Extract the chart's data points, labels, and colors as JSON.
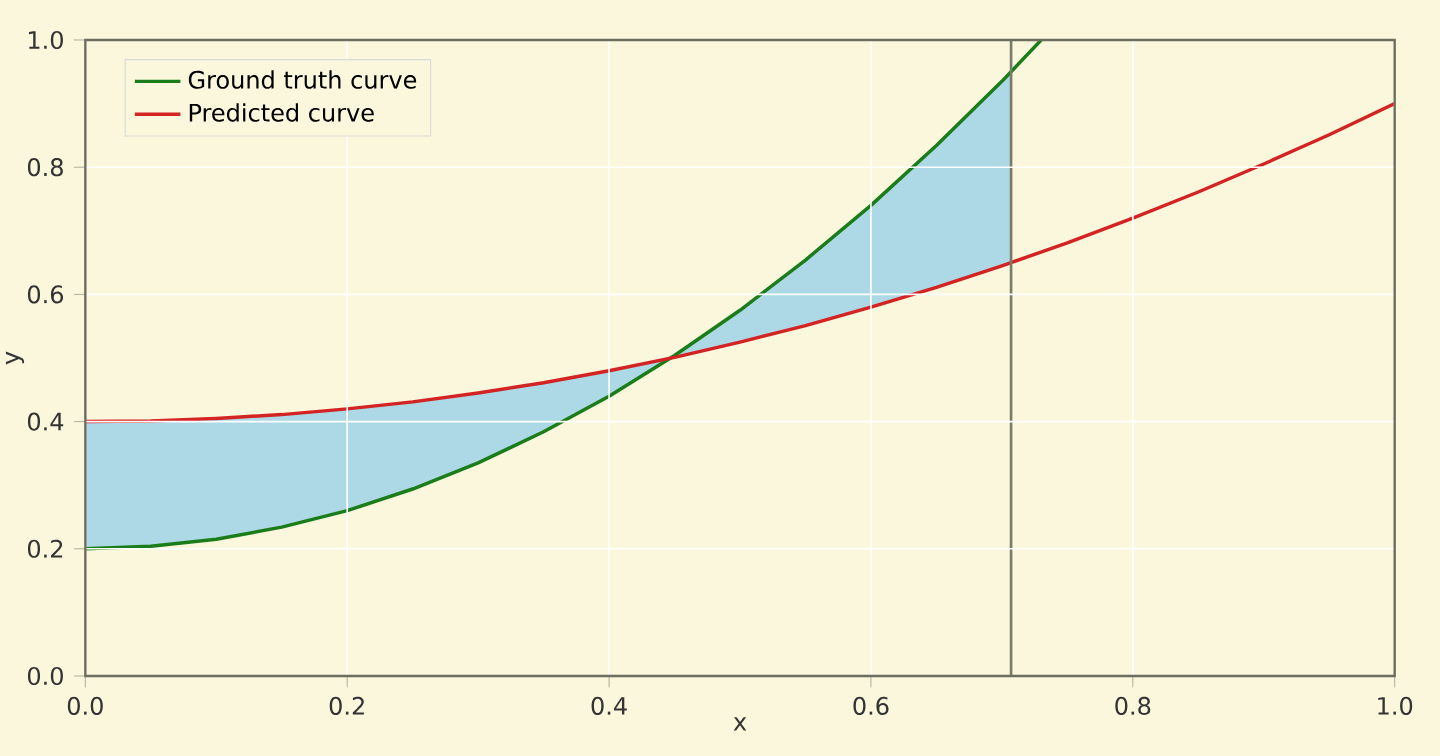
{
  "chart_data": {
    "type": "line",
    "xlabel": "x",
    "ylabel": "y",
    "xlim": [
      0,
      1
    ],
    "ylim": [
      0,
      1
    ],
    "xticks": [
      {
        "value": 0,
        "label": "0.0"
      },
      0.2,
      0.4,
      0.6,
      0.8,
      {
        "value": 1,
        "label": "1.0"
      }
    ],
    "yticks": [
      {
        "value": 0,
        "label": "0.0"
      },
      0.2,
      0.4,
      0.6,
      0.8,
      {
        "value": 1,
        "label": "1.0"
      }
    ],
    "grid": true,
    "legend": "top left",
    "ref_lines": [
      {
        "axis": "x",
        "value": 0.707,
        "color": "#7a7a6a"
      }
    ],
    "series": [
      {
        "name": "Ground truth curve",
        "color": "#1a7d1a",
        "x": [
          0,
          0.05,
          0.1,
          0.15,
          0.2,
          0.25,
          0.3,
          0.35,
          0.4,
          0.45,
          0.5,
          0.55,
          0.6,
          0.65,
          0.7,
          0.707,
          0.73
        ],
        "values": [
          0.2,
          0.204,
          0.215,
          0.234,
          0.26,
          0.294,
          0.335,
          0.384,
          0.44,
          0.504,
          0.575,
          0.654,
          0.74,
          0.834,
          0.935,
          0.95,
          1.0
        ],
        "lower": [
          0.2,
          0.204,
          0.215,
          0.234,
          0.26,
          0.294,
          0.335,
          0.384,
          0.44,
          0.501,
          0.525,
          0.551,
          0.58,
          0.611,
          0.645,
          0.65,
          null
        ],
        "upper": [
          0.4,
          0.401,
          0.405,
          0.411,
          0.42,
          0.431,
          0.445,
          0.461,
          0.48,
          0.504,
          0.575,
          0.654,
          0.74,
          0.834,
          0.935,
          0.95,
          null
        ]
      },
      {
        "name": "Predicted curve",
        "color": "#d42323",
        "x": [
          0,
          0.05,
          0.1,
          0.15,
          0.2,
          0.25,
          0.3,
          0.35,
          0.4,
          0.45,
          0.5,
          0.55,
          0.6,
          0.65,
          0.7,
          0.75,
          0.8,
          0.85,
          0.9,
          0.95,
          1.0
        ],
        "values": [
          0.4,
          0.401,
          0.405,
          0.411,
          0.42,
          0.431,
          0.445,
          0.461,
          0.48,
          0.501,
          0.525,
          0.551,
          0.58,
          0.611,
          0.645,
          0.681,
          0.72,
          0.761,
          0.805,
          0.851,
          0.9
        ]
      }
    ]
  }
}
